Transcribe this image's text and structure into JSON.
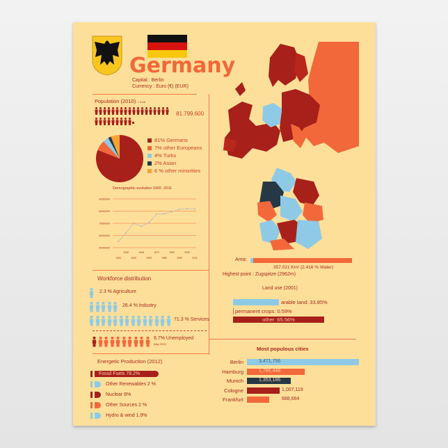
{
  "header": {
    "title": "Germany",
    "capital": "Capital : Berlin",
    "currency": "Currency : Euro (€) (EUR)"
  },
  "colors": {
    "dark_red": "#a8201a",
    "orange": "#f2683a",
    "light_blue": "#8ecae6",
    "navy": "#263845",
    "amber": "#f5a331",
    "background": "#fddf99"
  },
  "population": {
    "title": "Population (2010)",
    "icon_legend": "= 3 mil",
    "value": "81.799.600"
  },
  "pie": {
    "slices": [
      {
        "label": "81% Germans",
        "value": 81,
        "color": "#a8201a"
      },
      {
        "label": "7% other Europeans",
        "value": 7,
        "color": "#f2683a"
      },
      {
        "label": "4% Turks",
        "value": 4,
        "color": "#8ecae6"
      },
      {
        "label": "2% Asian",
        "value": 2,
        "color": "#263845"
      },
      {
        "label": "6 % other minorities",
        "value": 6,
        "color": "#f5a331"
      }
    ]
  },
  "chart_data": {
    "type": "line",
    "title": "Demographic evolution 1900 -2011",
    "x": [
      "1900",
      "1920",
      "1940",
      "1946",
      "1953",
      "1970",
      "1980",
      "1990",
      "1995",
      "2000",
      "2011"
    ],
    "values": [
      55000000,
      62000000,
      70000000,
      67500000,
      70500000,
      77500000,
      77700000,
      79500000,
      81500000,
      82000000,
      81800000
    ],
    "yticks": [
      "50000000",
      "60000000",
      "70000000",
      "80000000",
      "90000000"
    ],
    "ylim": [
      50000000,
      90000000
    ],
    "grid": true
  },
  "workforce": {
    "title": "Workforce distribution",
    "items": [
      {
        "label": "2.3 % Agriculture",
        "icons": 1
      },
      {
        "label": "26.4 % Industry",
        "icons": 5
      },
      {
        "label": "71.3 % Services",
        "icons": 14
      }
    ],
    "unemployed": "6.7% Unemployed",
    "unemployed_date": "(May 2012)"
  },
  "energy": {
    "title": "Energetic Production (2012)",
    "items": [
      "Fossil Fuels 78.2%",
      "Other Renewables 2 %",
      "Nuclear 8%",
      "Other Sources 2 %",
      "Hydro & wind 1.9%"
    ]
  },
  "geo": {
    "area_label": "Area:",
    "area_value": "357.021 Km² (2.416 % Water)",
    "water_fraction": 0.02416,
    "highest_point": "Highest point : Zugspitze (2962m)"
  },
  "land_use": {
    "title": "Land use (2001)",
    "items": [
      {
        "label": "arable land: 33.85%",
        "value": 33.85
      },
      {
        "label": "permanent crops: 0.59%",
        "value": 0.59
      },
      {
        "label": "other: 65.56%",
        "value": 65.56
      }
    ]
  },
  "cities": {
    "title": "Most populous cities",
    "items": [
      {
        "name": "Berlin",
        "pop": "3,471,756",
        "value": 3471756
      },
      {
        "name": "Hamburg",
        "pop": "1,786,448",
        "value": 1786448
      },
      {
        "name": "Munich",
        "pop": "1,353,186",
        "value": 1353186
      },
      {
        "name": "Cologne",
        "pop": "1,007,119",
        "value": 1007119
      },
      {
        "name": "Frankfurt",
        "pop": "688,664",
        "value": 688664
      }
    ]
  }
}
